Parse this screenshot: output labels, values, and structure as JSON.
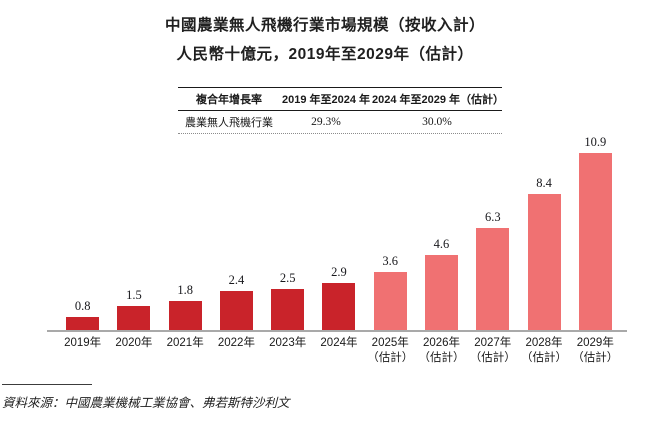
{
  "title": {
    "line1": "中國農業無人飛機行業市場規模（按收入計）",
    "line2": "人民幣十億元，2019年至2029年（估計）"
  },
  "cagr_table": {
    "col1_header": "複合年增長率",
    "col2_header": "2019 年至2024 年",
    "col3_header": "2024 年至2029 年（估計）",
    "row_label": "農業無人飛機行業",
    "cagr_2019_2024": "29.3%",
    "cagr_2024_2029": "30.0%"
  },
  "chart_data": {
    "type": "bar",
    "title": "中國農業無人飛機行業市場規模（按收入計）",
    "subtitle": "人民幣十億元，2019年至2029年（估計）",
    "unit": "人民幣十億元",
    "categories": [
      {
        "label": "2019年",
        "sublabel": "",
        "estimate": false
      },
      {
        "label": "2020年",
        "sublabel": "",
        "estimate": false
      },
      {
        "label": "2021年",
        "sublabel": "",
        "estimate": false
      },
      {
        "label": "2022年",
        "sublabel": "",
        "estimate": false
      },
      {
        "label": "2023年",
        "sublabel": "",
        "estimate": false
      },
      {
        "label": "2024年",
        "sublabel": "",
        "estimate": false
      },
      {
        "label": "2025年",
        "sublabel": "（估計）",
        "estimate": true
      },
      {
        "label": "2026年",
        "sublabel": "（估計）",
        "estimate": true
      },
      {
        "label": "2027年",
        "sublabel": "（估計）",
        "estimate": true
      },
      {
        "label": "2028年",
        "sublabel": "（估計）",
        "estimate": true
      },
      {
        "label": "2029年",
        "sublabel": "（估計）",
        "estimate": true
      }
    ],
    "values": [
      0.8,
      1.5,
      1.8,
      2.4,
      2.5,
      2.9,
      3.6,
      4.6,
      6.3,
      8.4,
      10.9
    ],
    "value_labels": [
      "0.8",
      "1.5",
      "1.8",
      "2.4",
      "2.5",
      "2.9",
      "3.6",
      "4.6",
      "6.3",
      "8.4",
      "10.9"
    ],
    "ylim": [
      0,
      11.5
    ],
    "grid": false,
    "legend": "none",
    "colors": {
      "historical": "#c9232a",
      "estimate": "#f07172",
      "axis": "#a9a9a9"
    }
  },
  "source_note": "資料來源：中國農業機械工業協會、弗若斯特沙利文"
}
